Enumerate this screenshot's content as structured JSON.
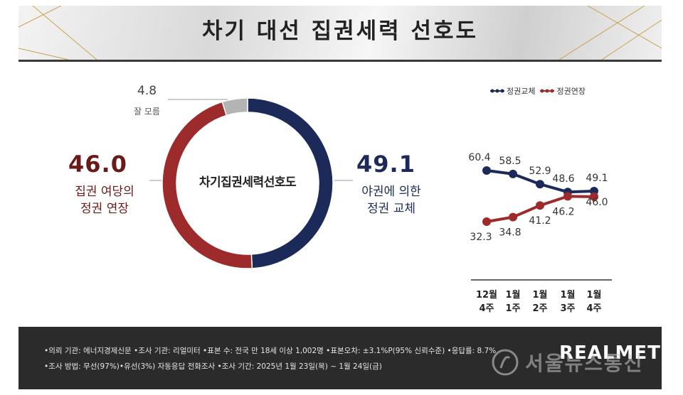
{
  "title": "차기 대선 집권세력 선호도",
  "donut": {
    "center_label": "차기집권세력선호도",
    "left_value": "46.0",
    "left_label_line1": "집권 여당의",
    "left_label_line2": "정권 연장",
    "right_value": "49.1",
    "right_label_line1": "야권에 의한",
    "right_label_line2": "정권 교체",
    "unknown_value": "4.8",
    "unknown_label": "잘 모름"
  },
  "chart_data": [
    {
      "type": "pie",
      "title": "차기집권세력선호도",
      "slices": [
        {
          "label": "야권에 의한 정권 교체",
          "value": 49.1,
          "color": "#1c2a5a"
        },
        {
          "label": "집권 여당의 정권 연장",
          "value": 46.0,
          "color": "#9e2b2b"
        },
        {
          "label": "잘 모름",
          "value": 4.8,
          "color": "#b4b4b4"
        }
      ]
    },
    {
      "type": "line",
      "categories": [
        "12월 4주",
        "1월 1주",
        "1월 2주",
        "1월 3주",
        "1월 4주"
      ],
      "series": [
        {
          "name": "정권교체",
          "values": [
            60.4,
            58.5,
            52.9,
            48.6,
            49.1
          ],
          "color": "#1c2a5a"
        },
        {
          "name": "정권연장",
          "values": [
            32.3,
            34.8,
            41.2,
            46.2,
            46.0
          ],
          "color": "#9e2b2b"
        }
      ],
      "legend_position": "top",
      "grid": false
    }
  ],
  "weeks": [
    {
      "line1": "12월",
      "line2": "4주"
    },
    {
      "line1": "1월",
      "line2": "1주"
    },
    {
      "line1": "1월",
      "line2": "2주"
    },
    {
      "line1": "1월",
      "line2": "3주"
    },
    {
      "line1": "1월",
      "line2": "4주"
    }
  ],
  "footer": {
    "line1": "•의뢰 기관: 에너지경제신문 •조사 기관: 리얼미터 •표본 수: 전국 만 18세 이상 1,002명 •표본오차: ±3.1%P(95% 신뢰수준) •응답률: 8.7%",
    "line2": "•조사 방법: 무선(97%)•유선(3%) 자동응답 전화조사 •조사 기간: 2025년 1월 23일(목) ~ 1월 24일(금)",
    "brand": "REALMETER"
  },
  "watermark": "서울뉴스통신"
}
